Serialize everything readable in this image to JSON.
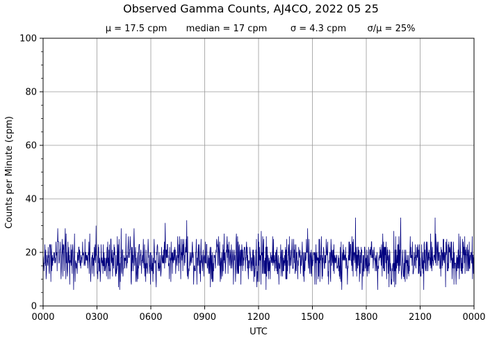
{
  "chart_data": {
    "type": "line",
    "title": "Observed Gamma Counts, AJ4CO, 2022 05 25",
    "subtitle": {
      "mean": "μ = 17.5 cpm",
      "median": "median = 17 cpm",
      "sigma": "σ = 4.3 cpm",
      "ratio": "σ/μ = 25%"
    },
    "xlabel": "UTC",
    "ylabel": "Counts per Minute (cpm)",
    "x_ticks": [
      "0000",
      "0300",
      "0600",
      "0900",
      "1200",
      "1500",
      "1800",
      "2100",
      "0000"
    ],
    "y_ticks": [
      "0",
      "20",
      "40",
      "60",
      "80",
      "100"
    ],
    "xlim_minutes": [
      0,
      1440
    ],
    "ylim": [
      0,
      100
    ],
    "grid": true,
    "series_color": "#00007f",
    "series": [
      {
        "sampling_interval_minutes": 1,
        "mean": 17.5,
        "sigma": 4.3,
        "min_observed": 6,
        "max_observed": 33,
        "highlights": [
          {
            "time": "0800",
            "value": 32
          },
          {
            "time": "1225",
            "value": 6
          },
          {
            "time": "1955",
            "value": 33
          },
          {
            "time": "2150",
            "value": 33
          }
        ]
      }
    ]
  }
}
